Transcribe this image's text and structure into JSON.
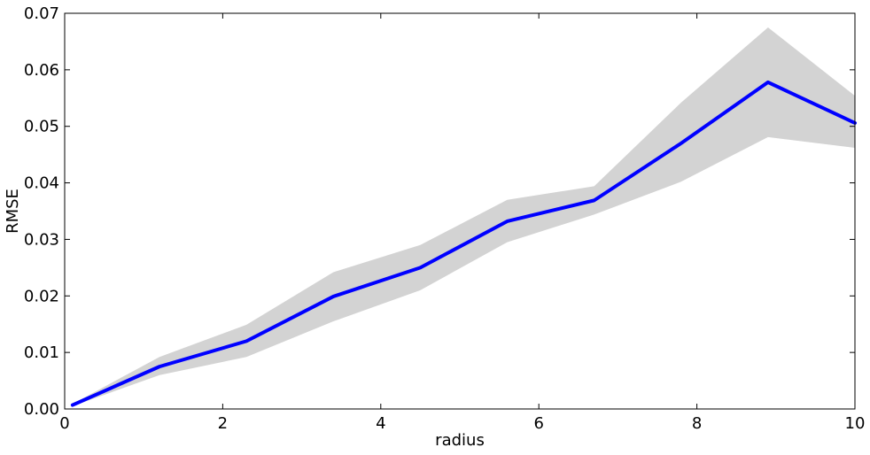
{
  "chart_data": {
    "type": "line",
    "title": "",
    "xlabel": "radius",
    "ylabel": "RMSE",
    "xlim": [
      0,
      10
    ],
    "ylim": [
      0,
      0.07
    ],
    "xticks": [
      0,
      2,
      4,
      6,
      8,
      10
    ],
    "xtick_labels": [
      "0",
      "2",
      "4",
      "6",
      "8",
      "10"
    ],
    "yticks": [
      0,
      0.01,
      0.02,
      0.03,
      0.04,
      0.05,
      0.06,
      0.07
    ],
    "ytick_labels": [
      "0.00",
      "0.01",
      "0.02",
      "0.03",
      "0.04",
      "0.05",
      "0.06",
      "0.07"
    ],
    "grid": false,
    "x": [
      0.1,
      1.2,
      2.3,
      3.4,
      4.5,
      5.6,
      6.7,
      7.8,
      8.9,
      10.0
    ],
    "series": [
      {
        "color": "#0000ff",
        "values": [
          0.0007,
          0.0075,
          0.012,
          0.0199,
          0.025,
          0.0332,
          0.0369,
          0.047,
          0.0578,
          0.0506
        ],
        "band_lower": [
          0.0005,
          0.006,
          0.0092,
          0.0155,
          0.021,
          0.0295,
          0.0344,
          0.0402,
          0.0481,
          0.0462
        ],
        "band_upper": [
          0.0009,
          0.0092,
          0.0149,
          0.0242,
          0.029,
          0.037,
          0.0394,
          0.0542,
          0.0675,
          0.0554
        ],
        "band_color": "#d3d3d3"
      }
    ]
  }
}
